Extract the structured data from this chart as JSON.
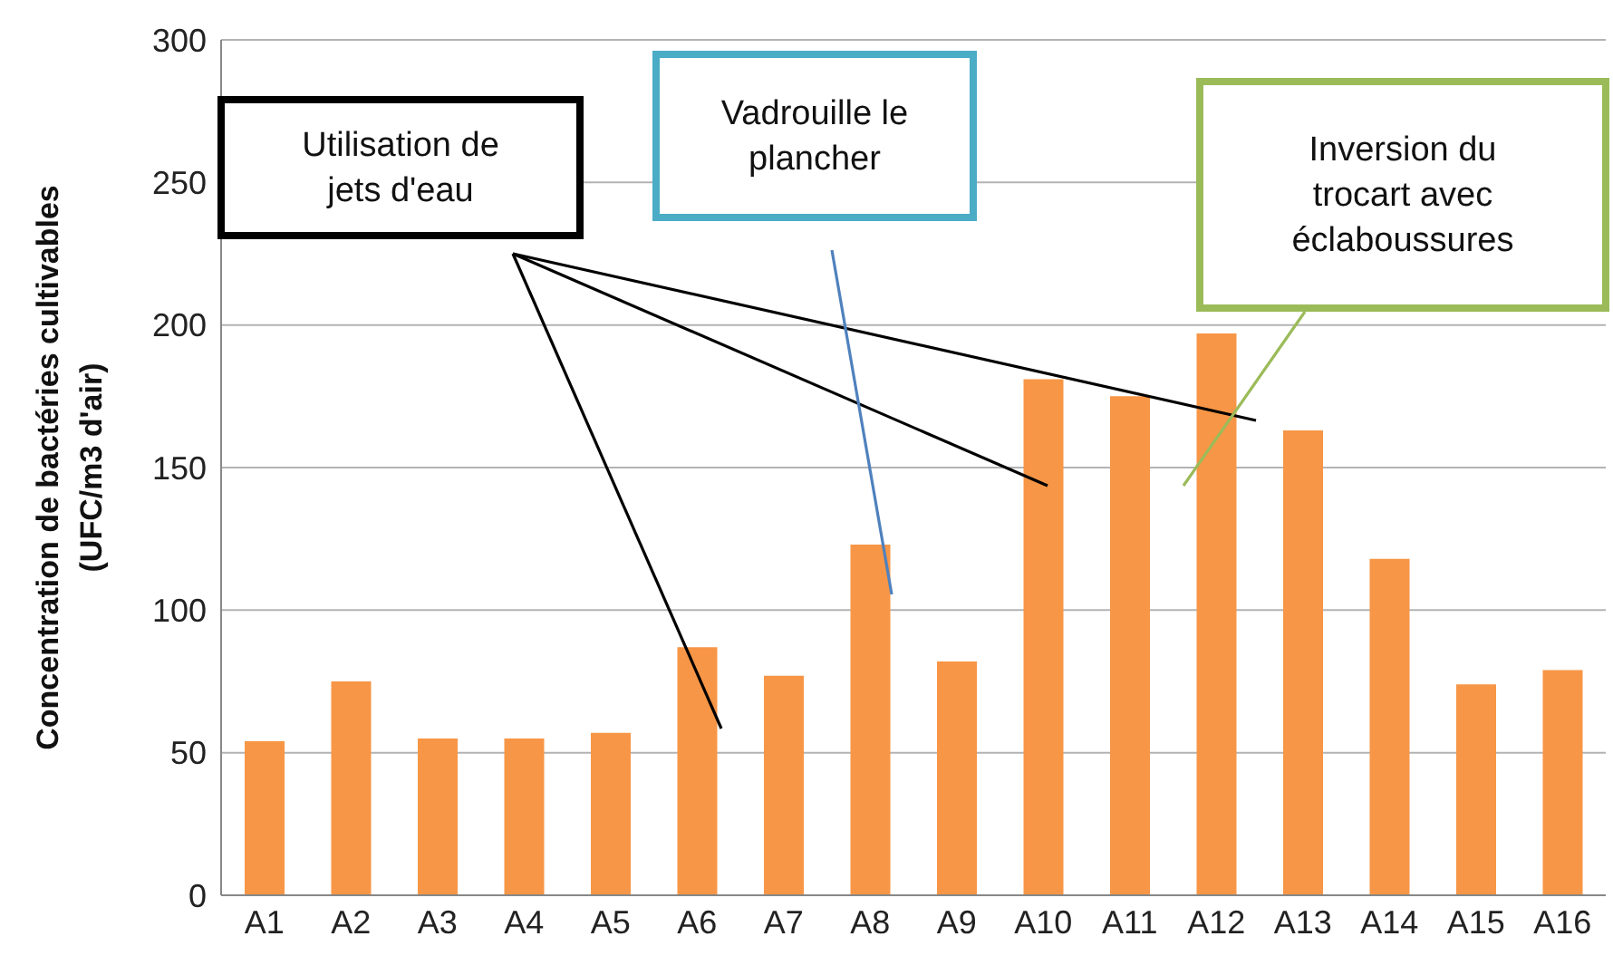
{
  "chart_data": {
    "type": "bar",
    "ylabel": "Concentration de bactéries cultivables\n(UFC/m3 d'air)",
    "categories": [
      "A1",
      "A2",
      "A3",
      "A4",
      "A5",
      "A6",
      "A7",
      "A8",
      "A9",
      "A10",
      "A11",
      "A12",
      "A13",
      "A14",
      "A15",
      "A16"
    ],
    "values": [
      54,
      75,
      55,
      55,
      57,
      87,
      77,
      123,
      82,
      181,
      175,
      197,
      163,
      118,
      74,
      79
    ],
    "color": "#f79646",
    "ylim": [
      0,
      300
    ],
    "yticks": [
      0,
      50,
      100,
      150,
      200,
      250,
      300
    ],
    "grid": "y",
    "annotations": [
      "Utilisation de\njets d'eau",
      "Vadrouille le\nplancher",
      "Inversion du\ntrocart avec\néclaboussures"
    ]
  }
}
